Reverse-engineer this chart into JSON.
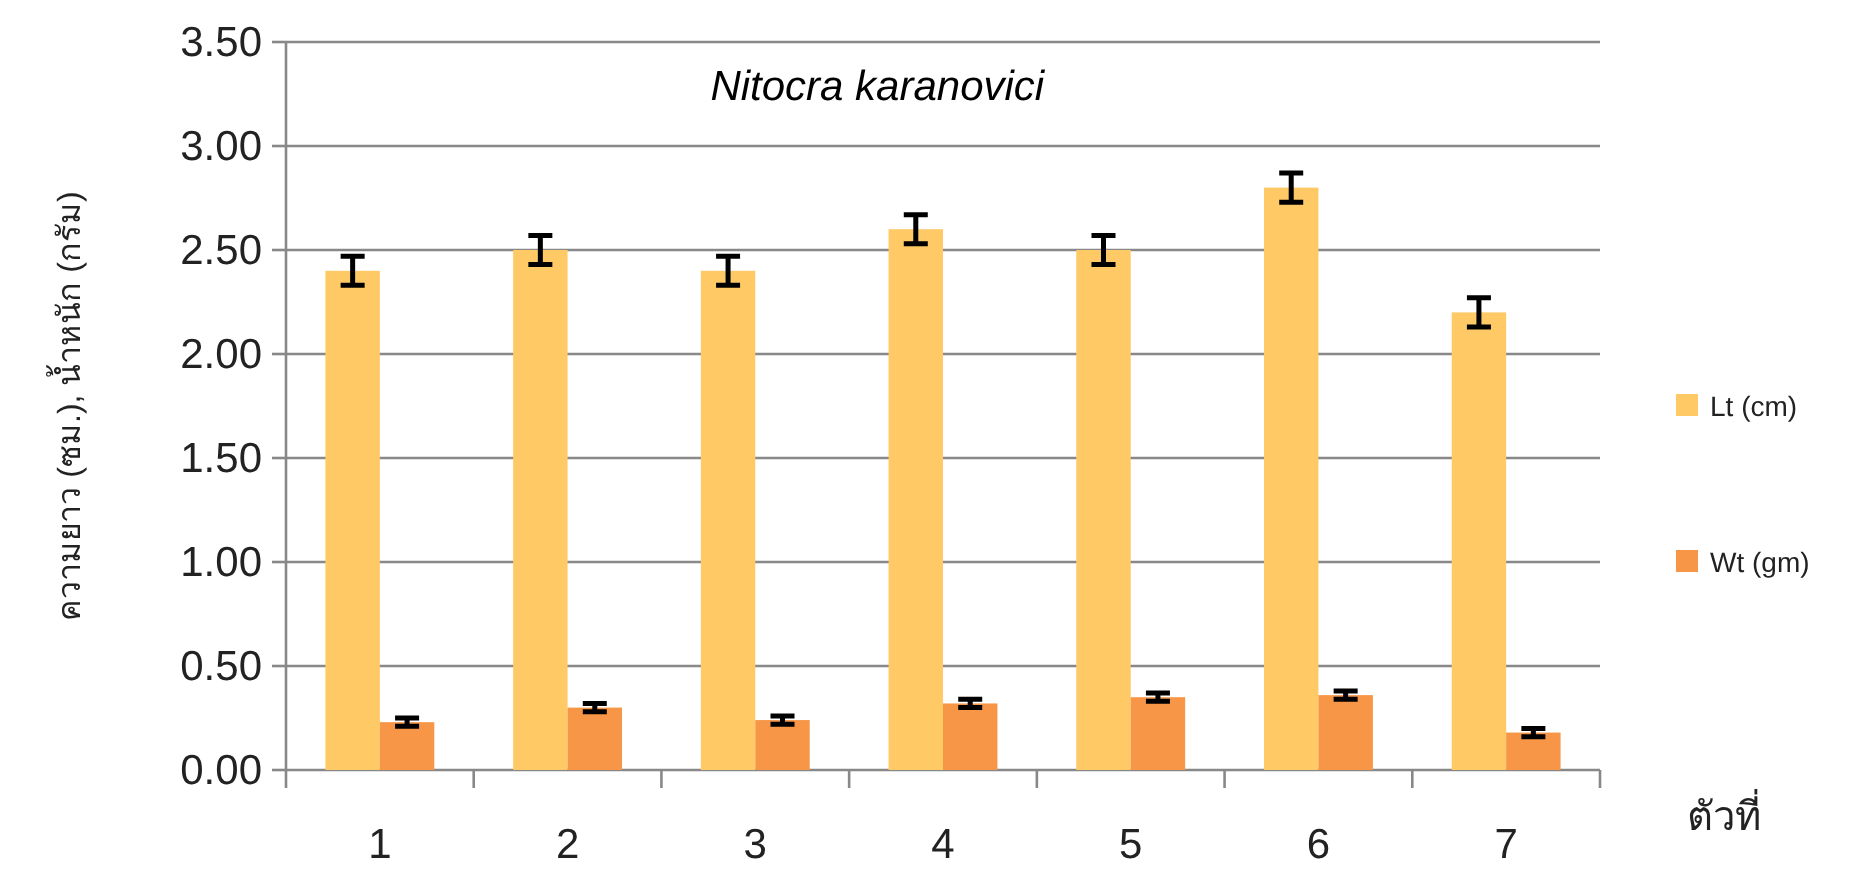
{
  "chart_data": {
    "type": "bar",
    "title": "Nitocra karanovici",
    "ylabel": "ความยาว (ซม.), น้ำหนัก (กรัม)",
    "xlabel": "ตัวที่",
    "categories": [
      "1",
      "2",
      "3",
      "4",
      "5",
      "6",
      "7"
    ],
    "series": [
      {
        "name": "Lt (cm)",
        "color": "#ffc966",
        "values": [
          2.4,
          2.5,
          2.4,
          2.6,
          2.5,
          2.8,
          2.2
        ],
        "errors": [
          0.07,
          0.07,
          0.07,
          0.07,
          0.07,
          0.07,
          0.07
        ]
      },
      {
        "name": "Wt (gm)",
        "color": "#f79646",
        "values": [
          0.23,
          0.3,
          0.24,
          0.32,
          0.35,
          0.36,
          0.18
        ],
        "errors": [
          0.02,
          0.02,
          0.02,
          0.02,
          0.02,
          0.02,
          0.02
        ]
      }
    ],
    "ylim": [
      0,
      3.5
    ],
    "yticks": [
      {
        "value": 0,
        "label": "0.00"
      },
      {
        "value": 0.5,
        "label": "0.50"
      },
      {
        "value": 1,
        "label": "1.00"
      },
      {
        "value": 1.5,
        "label": "1.50"
      },
      {
        "value": 2,
        "label": "2.00"
      },
      {
        "value": 2.5,
        "label": "2.50"
      },
      {
        "value": 3,
        "label": "3.00"
      },
      {
        "value": 3.5,
        "label": "3.50"
      }
    ],
    "grid": "y",
    "legend": "right"
  }
}
